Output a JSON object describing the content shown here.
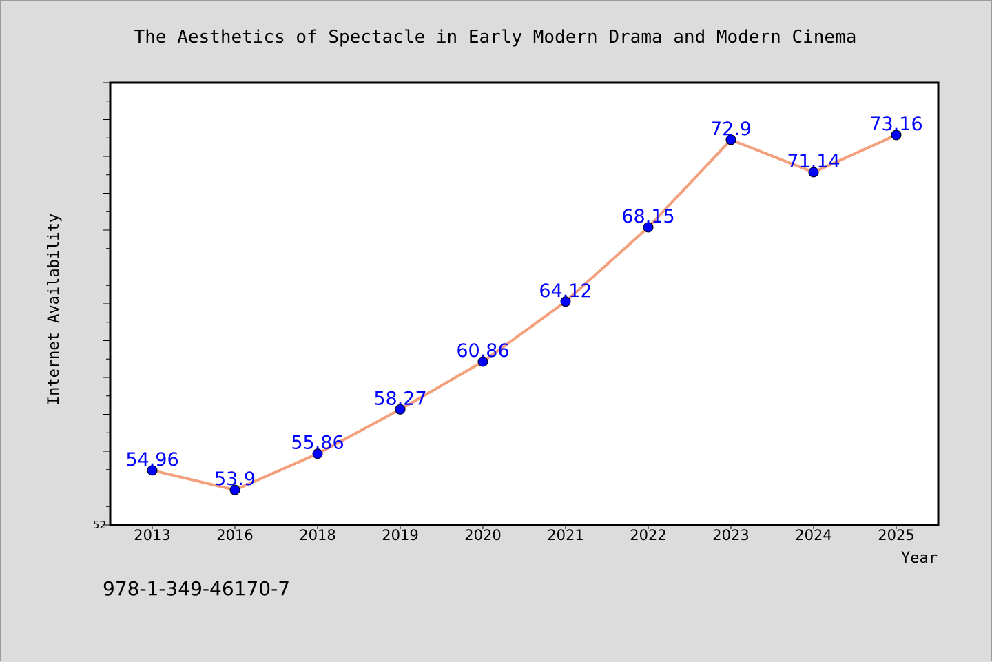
{
  "chart_data": {
    "type": "line",
    "title": "The Aesthetics of Spectacle in Early Modern Drama and Modern Cinema",
    "xlabel": "Year",
    "ylabel": "Internet Availability",
    "categories": [
      "2013",
      "2016",
      "2018",
      "2019",
      "2020",
      "2021",
      "2022",
      "2023",
      "2024",
      "2025"
    ],
    "series": [
      {
        "values": [
          54.96,
          53.9,
          55.86,
          58.27,
          60.86,
          64.12,
          68.15,
          72.9,
          71.14,
          73.16
        ],
        "data_labels": [
          "54.96",
          "53.9",
          "55.86",
          "58.27",
          "60.86",
          "64.12",
          "68.15",
          "72.9",
          "71.14",
          "73.16"
        ]
      }
    ],
    "ylim": [
      52,
      76
    ],
    "y_tick_labels": [
      "52"
    ],
    "grid": false,
    "legend": "none",
    "colors": {
      "line": "#f4a07c",
      "marker": "#0000ff",
      "data_label": "#0000ff",
      "background": "#dcdcdc",
      "plot_background": "#ffffff"
    }
  },
  "footer": {
    "isbn": "978-1-349-46170-7"
  }
}
